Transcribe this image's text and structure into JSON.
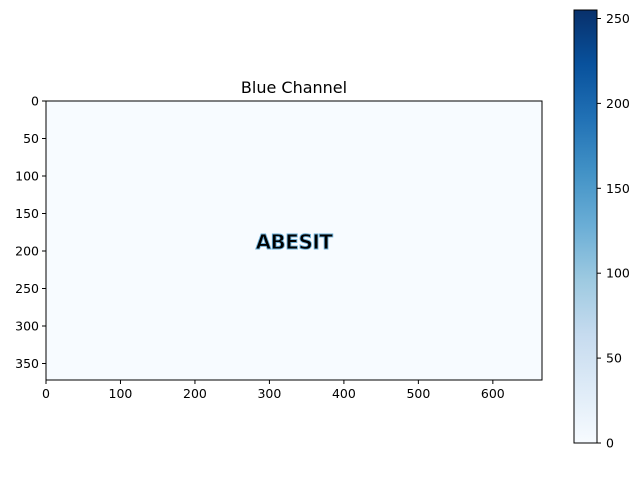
{
  "chart_data": {
    "type": "heatmap",
    "title": "Blue Channel",
    "xlabel": "",
    "ylabel": "",
    "image_width": 666,
    "image_height": 372,
    "xlim": [
      0,
      666
    ],
    "ylim": [
      372,
      0
    ],
    "xticks": [
      0,
      100,
      200,
      300,
      400,
      500,
      600
    ],
    "yticks": [
      0,
      50,
      100,
      150,
      200,
      250,
      300,
      350
    ],
    "background_value": 0,
    "image_text": "ABESIT",
    "image_text_center": [
      294,
      193
    ],
    "image_text_value_range": [
      60,
      140
    ],
    "colorbar": {
      "colormap": "Blues",
      "min": 0,
      "max": 255,
      "ticks": [
        0,
        50,
        100,
        150,
        200,
        250
      ]
    }
  },
  "colors": {
    "cmap_low": "#f7fbff",
    "cmap_mid": "#6baed6",
    "cmap_high": "#08306b"
  }
}
